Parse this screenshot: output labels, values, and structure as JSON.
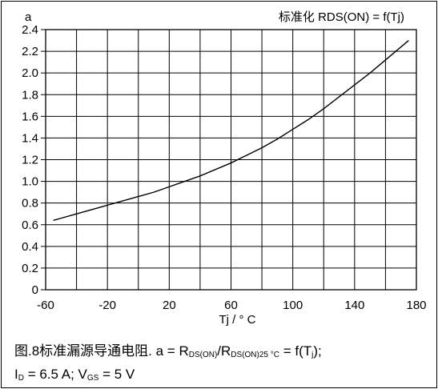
{
  "chart_data": {
    "type": "line",
    "title": "标准化 RDS(ON) = f(Tj)",
    "ylabel": "a",
    "xlabel": "Tj / ° C",
    "xlim": [
      -60,
      180
    ],
    "ylim": [
      0,
      2.4
    ],
    "x_ticks": [
      "-60",
      "-20",
      "20",
      "60",
      "100",
      "140",
      "180"
    ],
    "y_ticks": [
      "0",
      "0.2",
      "0.4",
      "0.6",
      "0.8",
      "1.0",
      "1.2",
      "1.4",
      "1.6",
      "1.8",
      "2.0",
      "2.2",
      "2.4"
    ],
    "grid": true,
    "x_grid_step": 20,
    "y_grid_step": 0.2,
    "series": [
      {
        "x": [
          -55,
          -50,
          -40,
          -30,
          -20,
          -10,
          0,
          10,
          20,
          30,
          40,
          50,
          60,
          70,
          80,
          90,
          100,
          110,
          120,
          130,
          140,
          150,
          160,
          170,
          175
        ],
        "y": [
          0.64,
          0.66,
          0.7,
          0.74,
          0.78,
          0.82,
          0.86,
          0.9,
          0.95,
          1.0,
          1.05,
          1.11,
          1.17,
          1.24,
          1.31,
          1.39,
          1.48,
          1.57,
          1.67,
          1.78,
          1.89,
          2.0,
          2.12,
          2.24,
          2.3
        ]
      }
    ]
  },
  "caption": {
    "line1_prefix": "图.8标准漏源导通电阻. a = R",
    "line1_sub1": "DS(ON)",
    "line1_mid": "/R",
    "line1_sub2": "DS(ON)25 °C",
    "line1_mid2": " = f(T",
    "line1_sub3": "j",
    "line1_end": ");",
    "line2_i": "I",
    "line2_sub1": "D",
    "line2_mid": " = 6.5 A; V",
    "line2_sub2": "GS",
    "line2_end": " = 5 V"
  }
}
